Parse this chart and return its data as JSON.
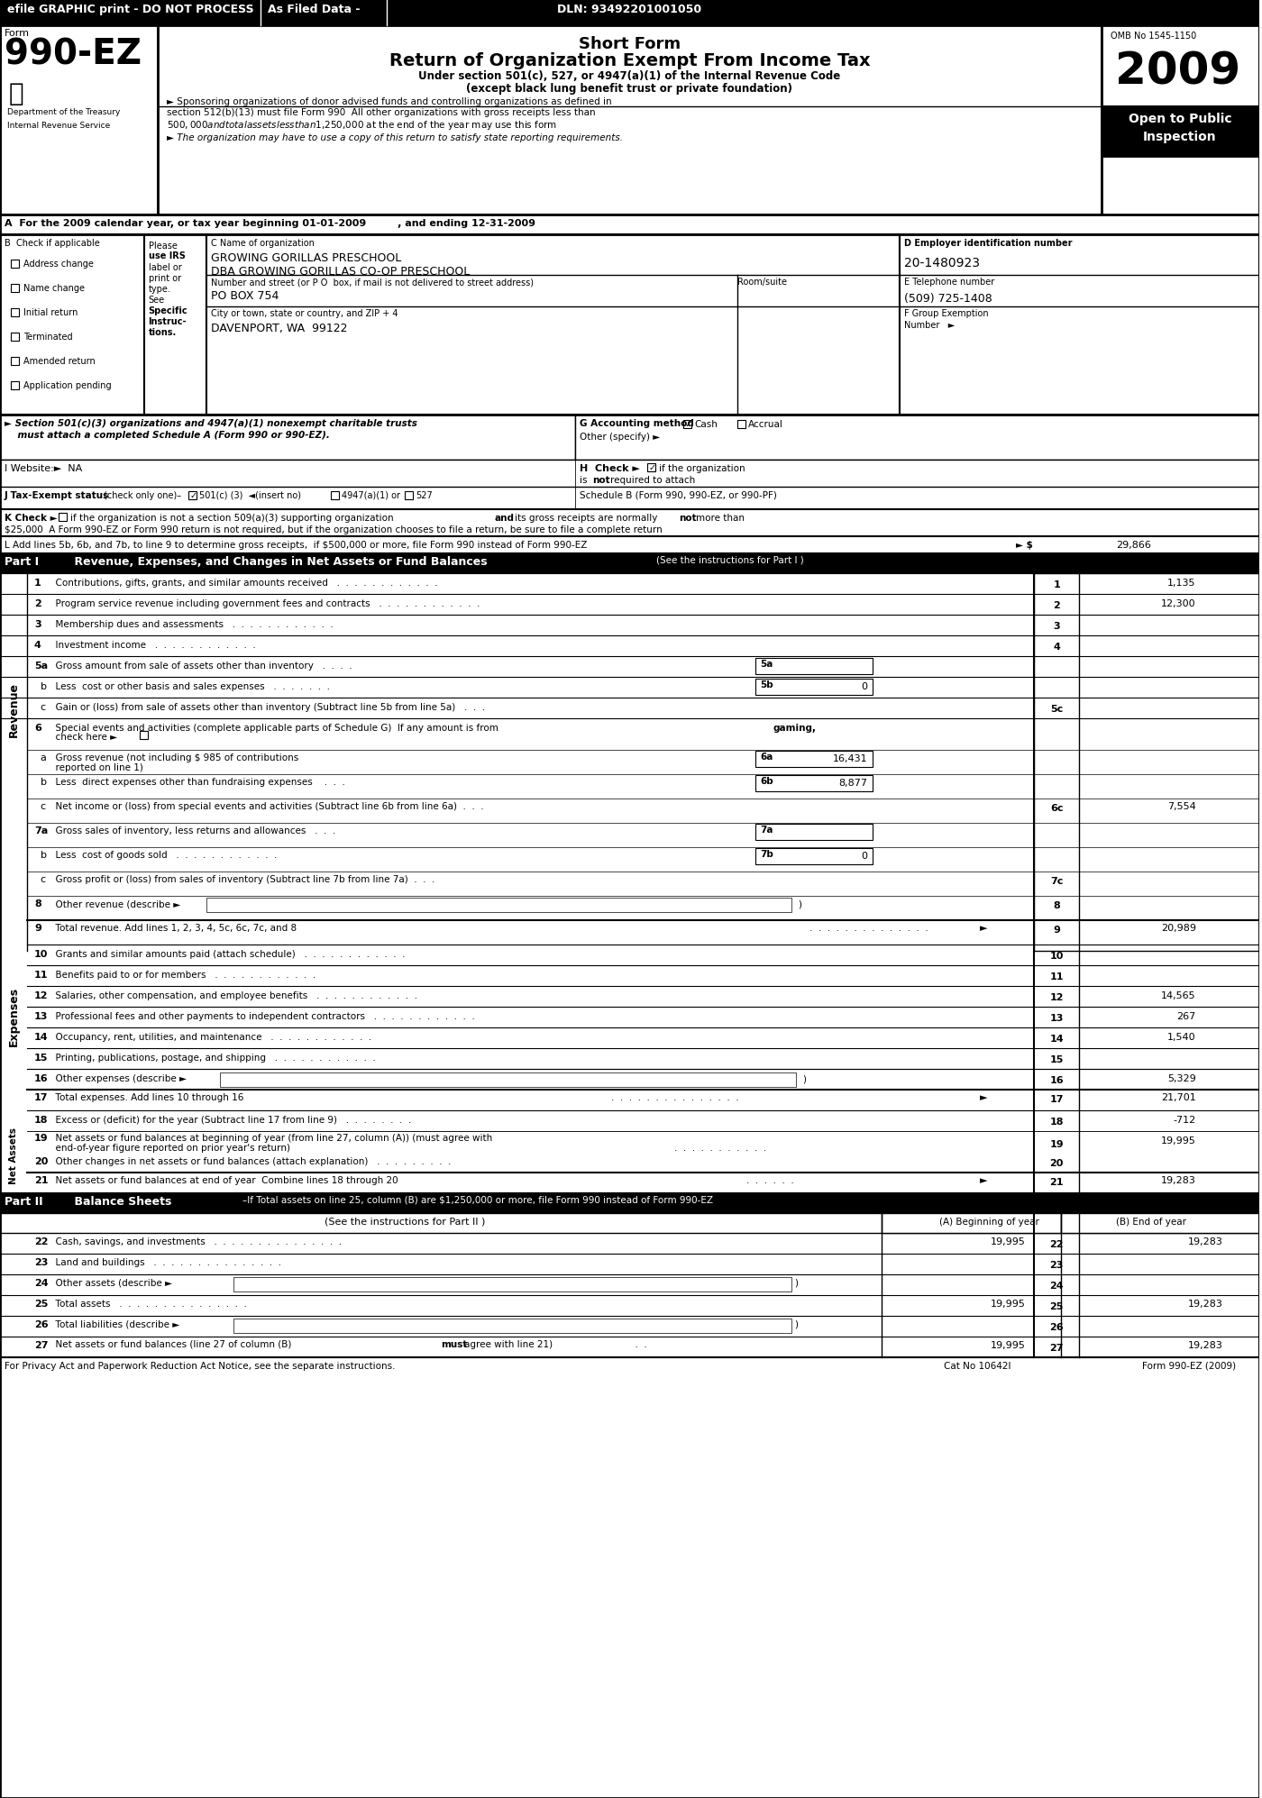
{
  "title_short": "Short Form",
  "title_main": "Return of Organization Exempt From Income Tax",
  "title_sub1": "Under section 501(c), 527, or 4947(a)(1) of the Internal Revenue Code",
  "title_sub2": "(except black lung benefit trust or private foundation)",
  "year": "2009",
  "omb": "OMB No 1545-1150",
  "efile_header": "efile GRAPHIC print - DO NOT PROCESS",
  "as_filed": "As Filed Data -",
  "dln": "DLN: 93492201001050",
  "form_number": "990-EZ",
  "dept": "Department of the Treasury",
  "irs": "Internal Revenue Service",
  "open_public": "Open to Public",
  "inspection": "Inspection",
  "sponsor_text1": "► Sponsoring organizations of donor advised funds and controlling organizations as defined in",
  "sponsor_text2": "section 512(b)(13) must file Form 990  All other organizations with gross receipts less than",
  "sponsor_text3": "$500,000 and total assets less than $1,250,000 at the end of the year may use this form",
  "org_note": "► The organization may have to use a copy of this return to satisfy state reporting requirements.",
  "section_a": "A  For the 2009 calendar year, or tax year beginning 01-01-2009         , and ending 12-31-2009",
  "org_name": "GROWING GORILLAS PRESCHOOL",
  "org_dba": "DBA GROWING GORILLAS CO-OP PRESCHOOL",
  "org_address": "PO BOX 754",
  "org_city": "DAVENPORT, WA  99122",
  "ein": "20-1480923",
  "phone": "(509) 725-1408",
  "website": "NA",
  "gross_receipts": "29,866",
  "part1_values": {
    "1": "1,135",
    "2": "12,300",
    "3": "",
    "4": "",
    "5a": "",
    "5b": "0",
    "5c": "",
    "6a": "16,431",
    "6b": "8,877",
    "6c": "7,554",
    "7a": "",
    "7b": "0",
    "7c": "",
    "8": "",
    "9": "20,989",
    "10": "",
    "11": "",
    "12": "14,565",
    "13": "267",
    "14": "1,540",
    "15": "",
    "16": "5,329",
    "17": "21,701",
    "18": "-712",
    "19": "19,995",
    "20": "",
    "21": "19,283"
  },
  "part2_values": {
    "22a": "19,995",
    "22b": "19,283",
    "23a": "",
    "23b": "",
    "24a": "",
    "24b": "",
    "25a": "19,995",
    "25b": "19,283",
    "26a": "",
    "26b": "",
    "27a": "19,995",
    "27b": "19,283"
  },
  "bg_color": "#ffffff",
  "header_bg": "#000000",
  "header_text": "#ffffff",
  "part_header_bg": "#000000",
  "part_header_text": "#ffffff",
  "year_box_bg": "#ffffff",
  "open_bg": "#000000",
  "line_color": "#000000"
}
